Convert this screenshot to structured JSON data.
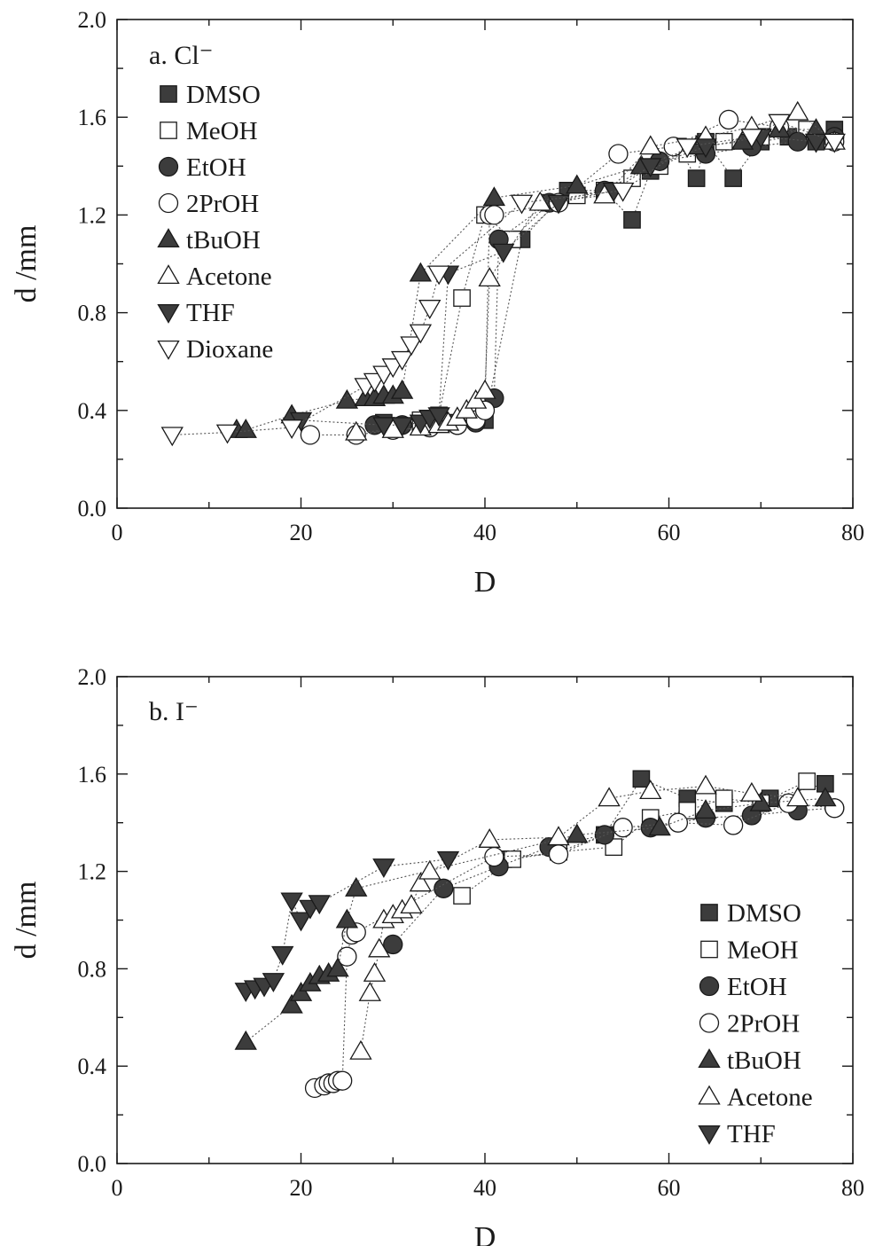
{
  "chart_data": [
    {
      "type": "scatter",
      "title": "a. Cl⁻",
      "xlabel": "D",
      "ylabel": "d /mm",
      "xlim": [
        0,
        80
      ],
      "ylim": [
        0.0,
        2.0
      ],
      "x_ticks": [
        "0",
        "20",
        "40",
        "60",
        "80"
      ],
      "y_ticks": [
        "0.0",
        "0.4",
        "0.8",
        "1.2",
        "1.6",
        "2.0"
      ],
      "legend_position": "top-left",
      "grid": false,
      "series": [
        {
          "name": "DMSO",
          "marker": "square-filled",
          "x": [
            29,
            33,
            36,
            40,
            44,
            49,
            53,
            56,
            58,
            61,
            63,
            64,
            67,
            70,
            73,
            76,
            78
          ],
          "y": [
            0.35,
            0.34,
            0.35,
            0.36,
            1.1,
            1.3,
            1.3,
            1.18,
            1.38,
            1.48,
            1.35,
            1.5,
            1.35,
            1.5,
            1.52,
            1.5,
            1.55
          ]
        },
        {
          "name": "MeOH",
          "marker": "square-open",
          "x": [
            33,
            35,
            37.5,
            40,
            43,
            47,
            50,
            53,
            56,
            59,
            62,
            66,
            70,
            75
          ],
          "y": [
            0.36,
            0.38,
            0.86,
            1.2,
            1.1,
            1.25,
            1.28,
            1.3,
            1.35,
            1.4,
            1.45,
            1.5,
            1.52,
            1.55
          ]
        },
        {
          "name": "EtOH",
          "marker": "circle-filled",
          "x": [
            28,
            31,
            34,
            37,
            39,
            41,
            41.5,
            47,
            53,
            59,
            64,
            69,
            74,
            78
          ],
          "y": [
            0.34,
            0.34,
            0.34,
            0.34,
            0.35,
            0.45,
            1.1,
            1.25,
            1.3,
            1.42,
            1.45,
            1.48,
            1.5,
            1.52
          ]
        },
        {
          "name": "2PrOH",
          "marker": "circle-open",
          "x": [
            21,
            26,
            30,
            34,
            37,
            39,
            40,
            40.5,
            41,
            48,
            54.5,
            60.5,
            66.5,
            72,
            78
          ],
          "y": [
            0.3,
            0.3,
            0.32,
            0.33,
            0.34,
            0.36,
            0.4,
            1.2,
            1.2,
            1.25,
            1.45,
            1.48,
            1.59,
            1.56,
            1.5
          ]
        },
        {
          "name": "tBuOH",
          "marker": "triangle-up-filled",
          "x": [
            13,
            14,
            19,
            25,
            27,
            28,
            29,
            30,
            31,
            33,
            41,
            50,
            57,
            63,
            68,
            72,
            76
          ],
          "y": [
            0.32,
            0.32,
            0.38,
            0.44,
            0.45,
            0.45,
            0.46,
            0.46,
            0.48,
            0.96,
            1.27,
            1.32,
            1.4,
            1.48,
            1.5,
            1.55,
            1.55
          ]
        },
        {
          "name": "Acetone",
          "marker": "triangle-up-open",
          "x": [
            26,
            30,
            33,
            35,
            36,
            37,
            38,
            39,
            40,
            40.5,
            46,
            53,
            58,
            64,
            69,
            74,
            78
          ],
          "y": [
            0.31,
            0.32,
            0.33,
            0.34,
            0.35,
            0.37,
            0.4,
            0.44,
            0.48,
            0.94,
            1.25,
            1.28,
            1.48,
            1.52,
            1.56,
            1.62,
            1.5
          ]
        },
        {
          "name": "THF",
          "marker": "triangle-down-filled",
          "x": [
            20,
            29,
            31,
            33,
            34,
            35,
            36,
            42,
            48,
            54,
            58,
            64,
            70,
            76
          ],
          "y": [
            0.36,
            0.34,
            0.34,
            0.35,
            0.37,
            0.38,
            0.96,
            1.05,
            1.25,
            1.3,
            1.4,
            1.48,
            1.52,
            1.5
          ]
        },
        {
          "name": "Dioxane",
          "marker": "triangle-down-open",
          "x": [
            6,
            12,
            19,
            27,
            28,
            29,
            30,
            31,
            32,
            33,
            34,
            35,
            44,
            55,
            62,
            69,
            72,
            78
          ],
          "y": [
            0.3,
            0.31,
            0.33,
            0.5,
            0.52,
            0.55,
            0.58,
            0.61,
            0.67,
            0.72,
            0.82,
            0.96,
            1.25,
            1.3,
            1.48,
            1.52,
            1.58,
            1.5
          ]
        }
      ]
    },
    {
      "type": "scatter",
      "title": "b. I⁻",
      "xlabel": "D",
      "ylabel": "d /mm",
      "xlim": [
        0,
        80
      ],
      "ylim": [
        0.0,
        2.0
      ],
      "x_ticks": [
        "0",
        "20",
        "40",
        "60",
        "80"
      ],
      "y_ticks": [
        "0.0",
        "0.4",
        "0.8",
        "1.2",
        "1.6",
        "2.0"
      ],
      "legend_position": "bottom-right",
      "grid": false,
      "series": [
        {
          "name": "DMSO",
          "marker": "square-filled",
          "x": [
            42,
            48,
            53,
            57,
            62,
            66,
            71,
            77
          ],
          "y": [
            1.25,
            1.28,
            1.35,
            1.58,
            1.5,
            1.48,
            1.5,
            1.56
          ]
        },
        {
          "name": "MeOH",
          "marker": "square-open",
          "x": [
            37.5,
            43,
            48,
            54,
            58,
            62,
            66,
            70,
            75
          ],
          "y": [
            1.1,
            1.25,
            1.28,
            1.3,
            1.42,
            1.45,
            1.5,
            1.48,
            1.57
          ]
        },
        {
          "name": "EtOH",
          "marker": "circle-filled",
          "x": [
            30,
            35.5,
            41.5,
            47,
            53,
            58,
            64,
            69,
            74,
            78
          ],
          "y": [
            0.9,
            1.13,
            1.22,
            1.3,
            1.35,
            1.38,
            1.42,
            1.43,
            1.45,
            1.46
          ]
        },
        {
          "name": "2PrOH",
          "marker": "circle-open",
          "x": [
            21.5,
            22.5,
            23,
            23.5,
            24,
            24.5,
            25,
            25.5,
            26,
            41,
            48,
            55,
            61,
            67,
            73,
            78
          ],
          "y": [
            0.31,
            0.32,
            0.33,
            0.33,
            0.34,
            0.34,
            0.85,
            0.94,
            0.95,
            1.26,
            1.27,
            1.38,
            1.4,
            1.39,
            1.48,
            1.46
          ]
        },
        {
          "name": "tBuOH",
          "marker": "triangle-up-filled",
          "x": [
            14,
            19,
            20,
            21,
            22,
            23,
            24,
            25,
            26,
            50,
            59,
            64,
            70,
            77
          ],
          "y": [
            0.5,
            0.65,
            0.7,
            0.74,
            0.77,
            0.78,
            0.8,
            1.0,
            1.13,
            1.35,
            1.38,
            1.45,
            1.48,
            1.5
          ]
        },
        {
          "name": "Acetone",
          "marker": "triangle-up-open",
          "x": [
            26.5,
            27.5,
            28,
            28.5,
            29,
            30,
            31,
            32,
            33,
            34,
            40.5,
            48,
            53.5,
            58,
            64,
            69,
            74
          ],
          "y": [
            0.46,
            0.7,
            0.78,
            0.88,
            1.0,
            1.02,
            1.04,
            1.06,
            1.15,
            1.2,
            1.33,
            1.34,
            1.5,
            1.53,
            1.55,
            1.52,
            1.5
          ]
        },
        {
          "name": "THF",
          "marker": "triangle-down-filled",
          "x": [
            14,
            15,
            16,
            17,
            18,
            19,
            20,
            21,
            22,
            29,
            36
          ],
          "y": [
            0.71,
            0.72,
            0.73,
            0.75,
            0.86,
            1.08,
            1.0,
            1.05,
            1.07,
            1.22,
            1.25
          ]
        }
      ]
    }
  ]
}
